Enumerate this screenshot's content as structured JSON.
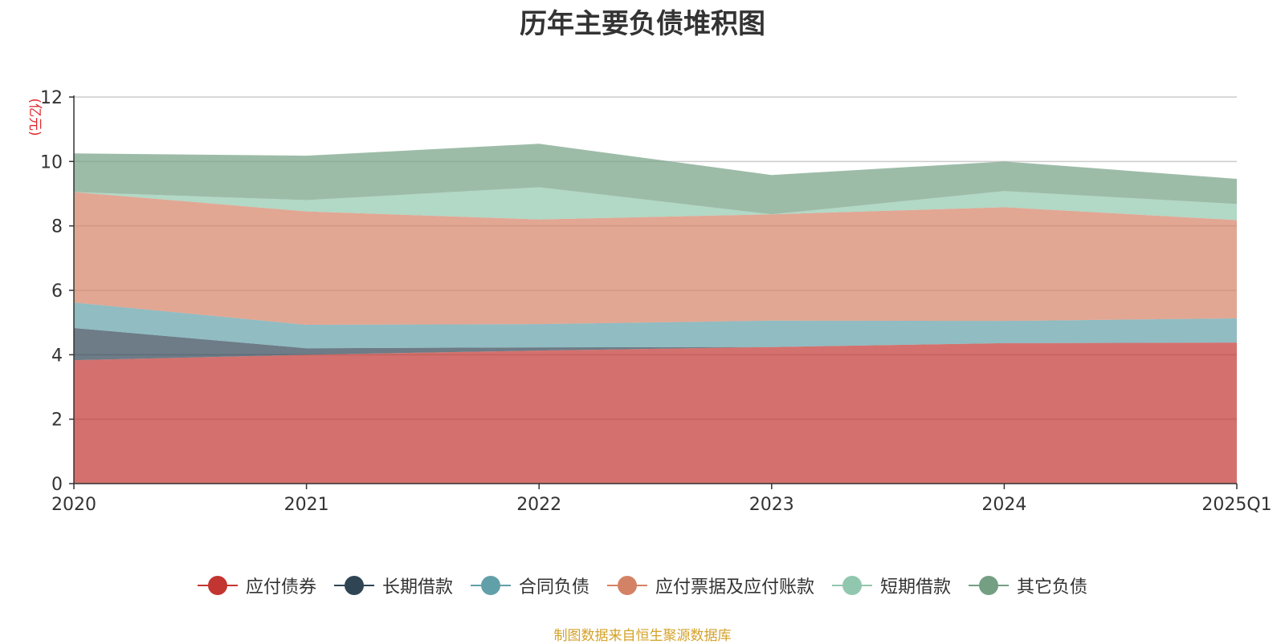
{
  "chart_data": {
    "type": "area",
    "title": "历年主要负债堆积图",
    "ylabel": "(亿元)",
    "xlabel": "",
    "categories": [
      "2020",
      "2021",
      "2022",
      "2023",
      "2024",
      "2025Q1"
    ],
    "ylim": [
      0,
      12
    ],
    "yticks": [
      0,
      2,
      4,
      6,
      8,
      10,
      12
    ],
    "stacked": true,
    "grid": true,
    "legend_position": "bottom",
    "series": [
      {
        "name": "应付债券",
        "color": "#c23531",
        "values": [
          3.83,
          4.0,
          4.13,
          4.24,
          4.36,
          4.38
        ]
      },
      {
        "name": "长期借款",
        "color": "#2f4554",
        "values": [
          1.0,
          0.2,
          0.1,
          0.0,
          0.0,
          0.0
        ]
      },
      {
        "name": "合同负债",
        "color": "#61a0a8",
        "values": [
          0.79,
          0.73,
          0.72,
          0.82,
          0.69,
          0.75
        ]
      },
      {
        "name": "应付票据及应付账款",
        "color": "#d48265",
        "values": [
          3.43,
          3.52,
          3.25,
          3.3,
          3.53,
          3.05
        ]
      },
      {
        "name": "短期借款",
        "color": "#91c7ae",
        "values": [
          0.0,
          0.35,
          1.0,
          0.0,
          0.5,
          0.5
        ]
      },
      {
        "name": "其它负债",
        "color": "#749f83",
        "values": [
          1.2,
          1.38,
          1.35,
          1.22,
          0.92,
          0.78
        ]
      }
    ],
    "source_note": "制图数据来自恒生聚源数据库"
  }
}
